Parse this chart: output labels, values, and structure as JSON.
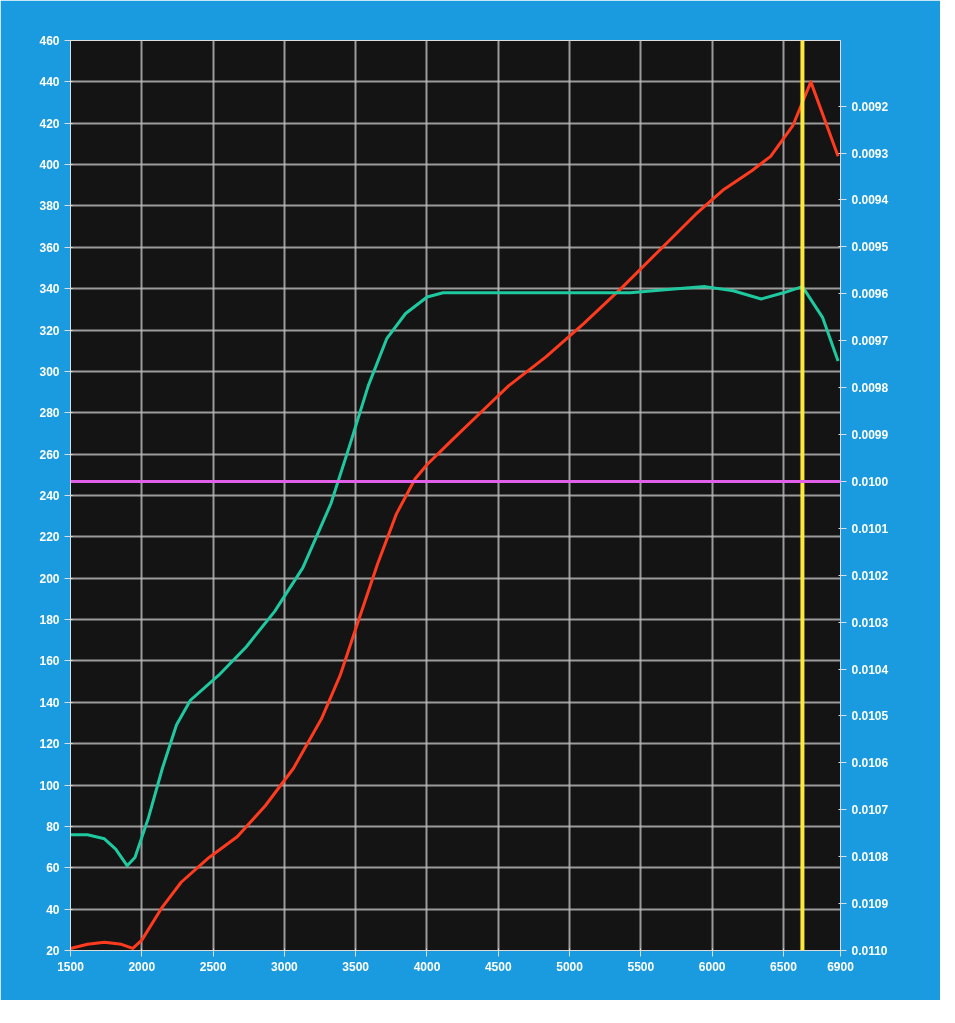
{
  "chart_data": {
    "type": "line",
    "x": [
      1500,
      1619,
      1738,
      1857,
      1937,
      2000,
      2144,
      2276,
      2472,
      2669,
      2866,
      3063,
      3260,
      3391,
      3522,
      3654,
      3785,
      3916,
      4001,
      4179,
      4375,
      4572,
      4834,
      5097,
      5360,
      5622,
      5885,
      6082,
      6278,
      6410,
      6567,
      6692,
      6883
    ],
    "series": [
      {
        "color": "#ff3b1f",
        "values": [
          21,
          23,
          24,
          23,
          21,
          25,
          41,
          53,
          65,
          75,
          90,
          108,
          132,
          153,
          180,
          207,
          231,
          248,
          255,
          267,
          280,
          293,
          307,
          323,
          340,
          358,
          376,
          388,
          397,
          404,
          419,
          440,
          404
        ]
      },
      {
        "color": "#1fc9a0",
        "x": [
          1500,
          1619,
          1738,
          1817,
          1897,
          1952,
          2046,
          2144,
          2243,
          2341,
          2538,
          2735,
          2932,
          3129,
          3326,
          3457,
          3588,
          3719,
          3850,
          4001,
          4113,
          4441,
          4769,
          5097,
          5425,
          5753,
          5950,
          6147,
          6344,
          6500,
          6633,
          6775,
          6883
        ],
        "values": [
          76,
          76,
          74,
          69,
          61,
          65,
          84,
          108,
          129,
          141,
          153,
          167,
          184,
          205,
          236,
          264,
          293,
          316,
          328,
          336,
          338,
          338,
          338,
          338,
          338,
          340,
          341,
          339,
          335,
          338,
          341,
          326,
          305
        ]
      }
    ],
    "xlim": [
      1500,
      6900
    ],
    "xticks": [
      1500,
      2000,
      2500,
      3000,
      3500,
      4000,
      4500,
      5000,
      5500,
      6000,
      6500,
      6900
    ],
    "ylim": [
      20,
      460
    ],
    "yticks": [
      20,
      40,
      60,
      80,
      100,
      120,
      140,
      160,
      180,
      200,
      220,
      240,
      260,
      280,
      300,
      320,
      340,
      360,
      380,
      400,
      420,
      440,
      460
    ],
    "y2lim": [
      0.011,
      0.00906
    ],
    "y2ticks": [
      {
        "value": 0.0092,
        "label": "0.0092"
      },
      {
        "value": 0.0093,
        "label": "0.0093"
      },
      {
        "value": 0.0094,
        "label": "0.0094"
      },
      {
        "value": 0.0095,
        "label": "0.0095"
      },
      {
        "value": 0.0096,
        "label": "0.0096"
      },
      {
        "value": 0.0097,
        "label": "0.0097"
      },
      {
        "value": 0.0098,
        "label": "0.0098"
      },
      {
        "value": 0.0099,
        "label": "0.0099"
      },
      {
        "value": 0.01,
        "label": "0.0100"
      },
      {
        "value": 0.0101,
        "label": "0.0101"
      },
      {
        "value": 0.0102,
        "label": "0.0102"
      },
      {
        "value": 0.0103,
        "label": "0.0103"
      },
      {
        "value": 0.0104,
        "label": "0.0104"
      },
      {
        "value": 0.0105,
        "label": "0.0105"
      },
      {
        "value": 0.0106,
        "label": "0.0106"
      },
      {
        "value": 0.0107,
        "label": "0.0107"
      },
      {
        "value": 0.0108,
        "label": "0.0108"
      },
      {
        "value": 0.0109,
        "label": "0.0109"
      },
      {
        "value": 0.011,
        "label": "0.0110"
      }
    ],
    "ref_lines": [
      {
        "axis": "x",
        "value": 6633,
        "color": "#ffe83a"
      },
      {
        "axis": "y2",
        "value": 0.01,
        "color": "#e060e8"
      }
    ],
    "grid": true,
    "marker": "none",
    "line_style": "solid"
  }
}
